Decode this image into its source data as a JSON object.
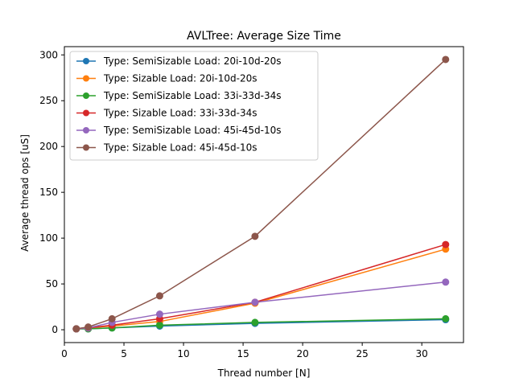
{
  "chart_data": {
    "type": "line",
    "title": "AVLTree: Average Size Time",
    "xlabel": "Thread number [N]",
    "ylabel": "Average thread ops [uS]",
    "xlim": [
      0,
      33.5
    ],
    "ylim": [
      -14,
      309
    ],
    "xticks": [
      0,
      5,
      10,
      15,
      20,
      25,
      30
    ],
    "yticks": [
      0,
      50,
      100,
      150,
      200,
      250,
      300
    ],
    "grid": false,
    "legend_position": "top-left",
    "x": [
      1,
      2,
      4,
      8,
      16,
      32
    ],
    "series": [
      {
        "name": "Type: SemiSizable Load: 20i-10d-20s",
        "color": "#1f77b4",
        "values": [
          1,
          1,
          2,
          4,
          7,
          11
        ]
      },
      {
        "name": "Type: Sizable Load: 20i-10d-20s",
        "color": "#ff7f0e",
        "values": [
          1,
          2,
          4,
          9,
          29,
          88
        ]
      },
      {
        "name": "Type: SemiSizable Load: 33i-33d-34s",
        "color": "#2ca02c",
        "values": [
          1,
          1,
          2,
          5,
          8,
          12
        ]
      },
      {
        "name": "Type: Sizable Load: 33i-33d-34s",
        "color": "#d62728",
        "values": [
          1,
          2,
          5,
          12,
          30,
          93
        ]
      },
      {
        "name": "Type: SemiSizable Load: 45i-45d-10s",
        "color": "#9467bd",
        "values": [
          1,
          2,
          8,
          17,
          30,
          52
        ]
      },
      {
        "name": "Type: Sizable Load: 45i-45d-10s",
        "color": "#8c564b",
        "values": [
          1,
          3,
          12,
          37,
          102,
          295
        ]
      }
    ]
  }
}
